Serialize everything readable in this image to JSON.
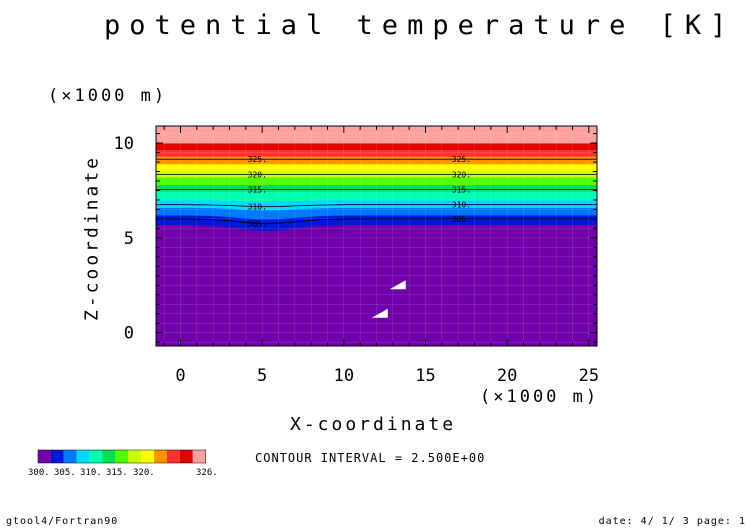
{
  "chart_data": {
    "type": "heatmap",
    "title": "potential temperature [K]",
    "xlabel": "X-coordinate",
    "ylabel": "Z-coordinate",
    "x_unit": "(×1000 m)",
    "y_unit": "(×1000 m)",
    "xlim": [
      -1.5,
      25.5
    ],
    "ylim": [
      -0.7,
      10.9
    ],
    "x_ticks": [
      0,
      5,
      10,
      15,
      20,
      25
    ],
    "y_ticks": [
      0,
      5,
      10
    ],
    "contour_interval_text": "CONTOUR INTERVAL = 2.500E+00",
    "contour_levels": [
      305,
      310,
      315,
      320,
      325
    ],
    "contour_labels": [
      "305.",
      "310.",
      "315.",
      "320.",
      "325."
    ],
    "isotherm_heights_far": [
      6.15,
      6.85,
      7.55,
      8.3,
      9.05,
      9.8
    ],
    "isotherm_heights_far_temps": [
      304.5,
      307.5,
      310.5,
      313.5,
      316.5,
      320.5
    ],
    "mountain": {
      "center_x": 5.3,
      "depression_depth": 0.3,
      "half_width": 2.5
    },
    "white_markers": [
      {
        "x": 13.3,
        "z": 2.5
      },
      {
        "x": 12.2,
        "z": 1.0
      }
    ],
    "colorbar": {
      "colors": [
        "#7000aa",
        "#0018d8",
        "#0078ff",
        "#00d8ff",
        "#00ffb0",
        "#00e050",
        "#50ff00",
        "#c8ff00",
        "#ffff00",
        "#ff9000",
        "#ff3030",
        "#e00000",
        "#ffa0a0"
      ],
      "labels": [
        "300.",
        "305.",
        "310.",
        "315.",
        "320.",
        "326."
      ]
    },
    "bands": [
      {
        "z0": -0.7,
        "z1": 5.7,
        "color": "#7000aa"
      },
      {
        "z0": 5.7,
        "z1": 6.2,
        "color": "#0018d8"
      },
      {
        "z0": 6.2,
        "z1": 6.6,
        "color": "#0078ff"
      },
      {
        "z0": 6.6,
        "z1": 7.0,
        "color": "#00d8ff"
      },
      {
        "z0": 7.0,
        "z1": 7.45,
        "color": "#00ffb0"
      },
      {
        "z0": 7.45,
        "z1": 7.8,
        "color": "#00e050"
      },
      {
        "z0": 7.8,
        "z1": 8.2,
        "color": "#50ff00"
      },
      {
        "z0": 8.2,
        "z1": 8.55,
        "color": "#c8ff00"
      },
      {
        "z0": 8.55,
        "z1": 8.9,
        "color": "#ffff00"
      },
      {
        "z0": 8.9,
        "z1": 9.3,
        "color": "#ff9000"
      },
      {
        "z0": 9.3,
        "z1": 9.65,
        "color": "#ff3030"
      },
      {
        "z0": 9.65,
        "z1": 10.0,
        "color": "#e00000"
      },
      {
        "z0": 10.0,
        "z1": 10.9,
        "color": "#ffa0a0"
      }
    ]
  },
  "footer": {
    "left": "gtool4/Fortran90",
    "right": "date: 4/ 1/ 3 page: 1"
  }
}
